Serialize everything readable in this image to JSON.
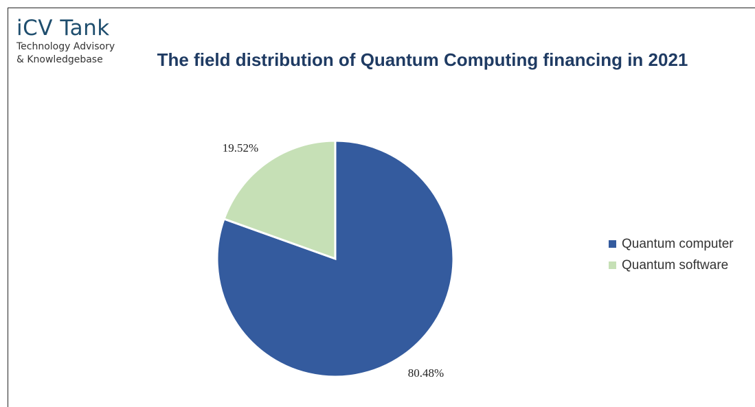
{
  "logo": {
    "name": "iCV Tank",
    "tagline_line1": "Technology Advisory",
    "tagline_line2": "& Knowledgebase"
  },
  "chart_data": {
    "type": "pie",
    "title": "The field distribution of Quantum Computing financing in 2021",
    "categories": [
      "Quantum computer",
      "Quantum software"
    ],
    "values": [
      80.48,
      19.52
    ],
    "labels": [
      "80.48%",
      "19.52%"
    ],
    "colors": [
      "#345b9e",
      "#c6e0b6"
    ],
    "legend_position": "right"
  }
}
